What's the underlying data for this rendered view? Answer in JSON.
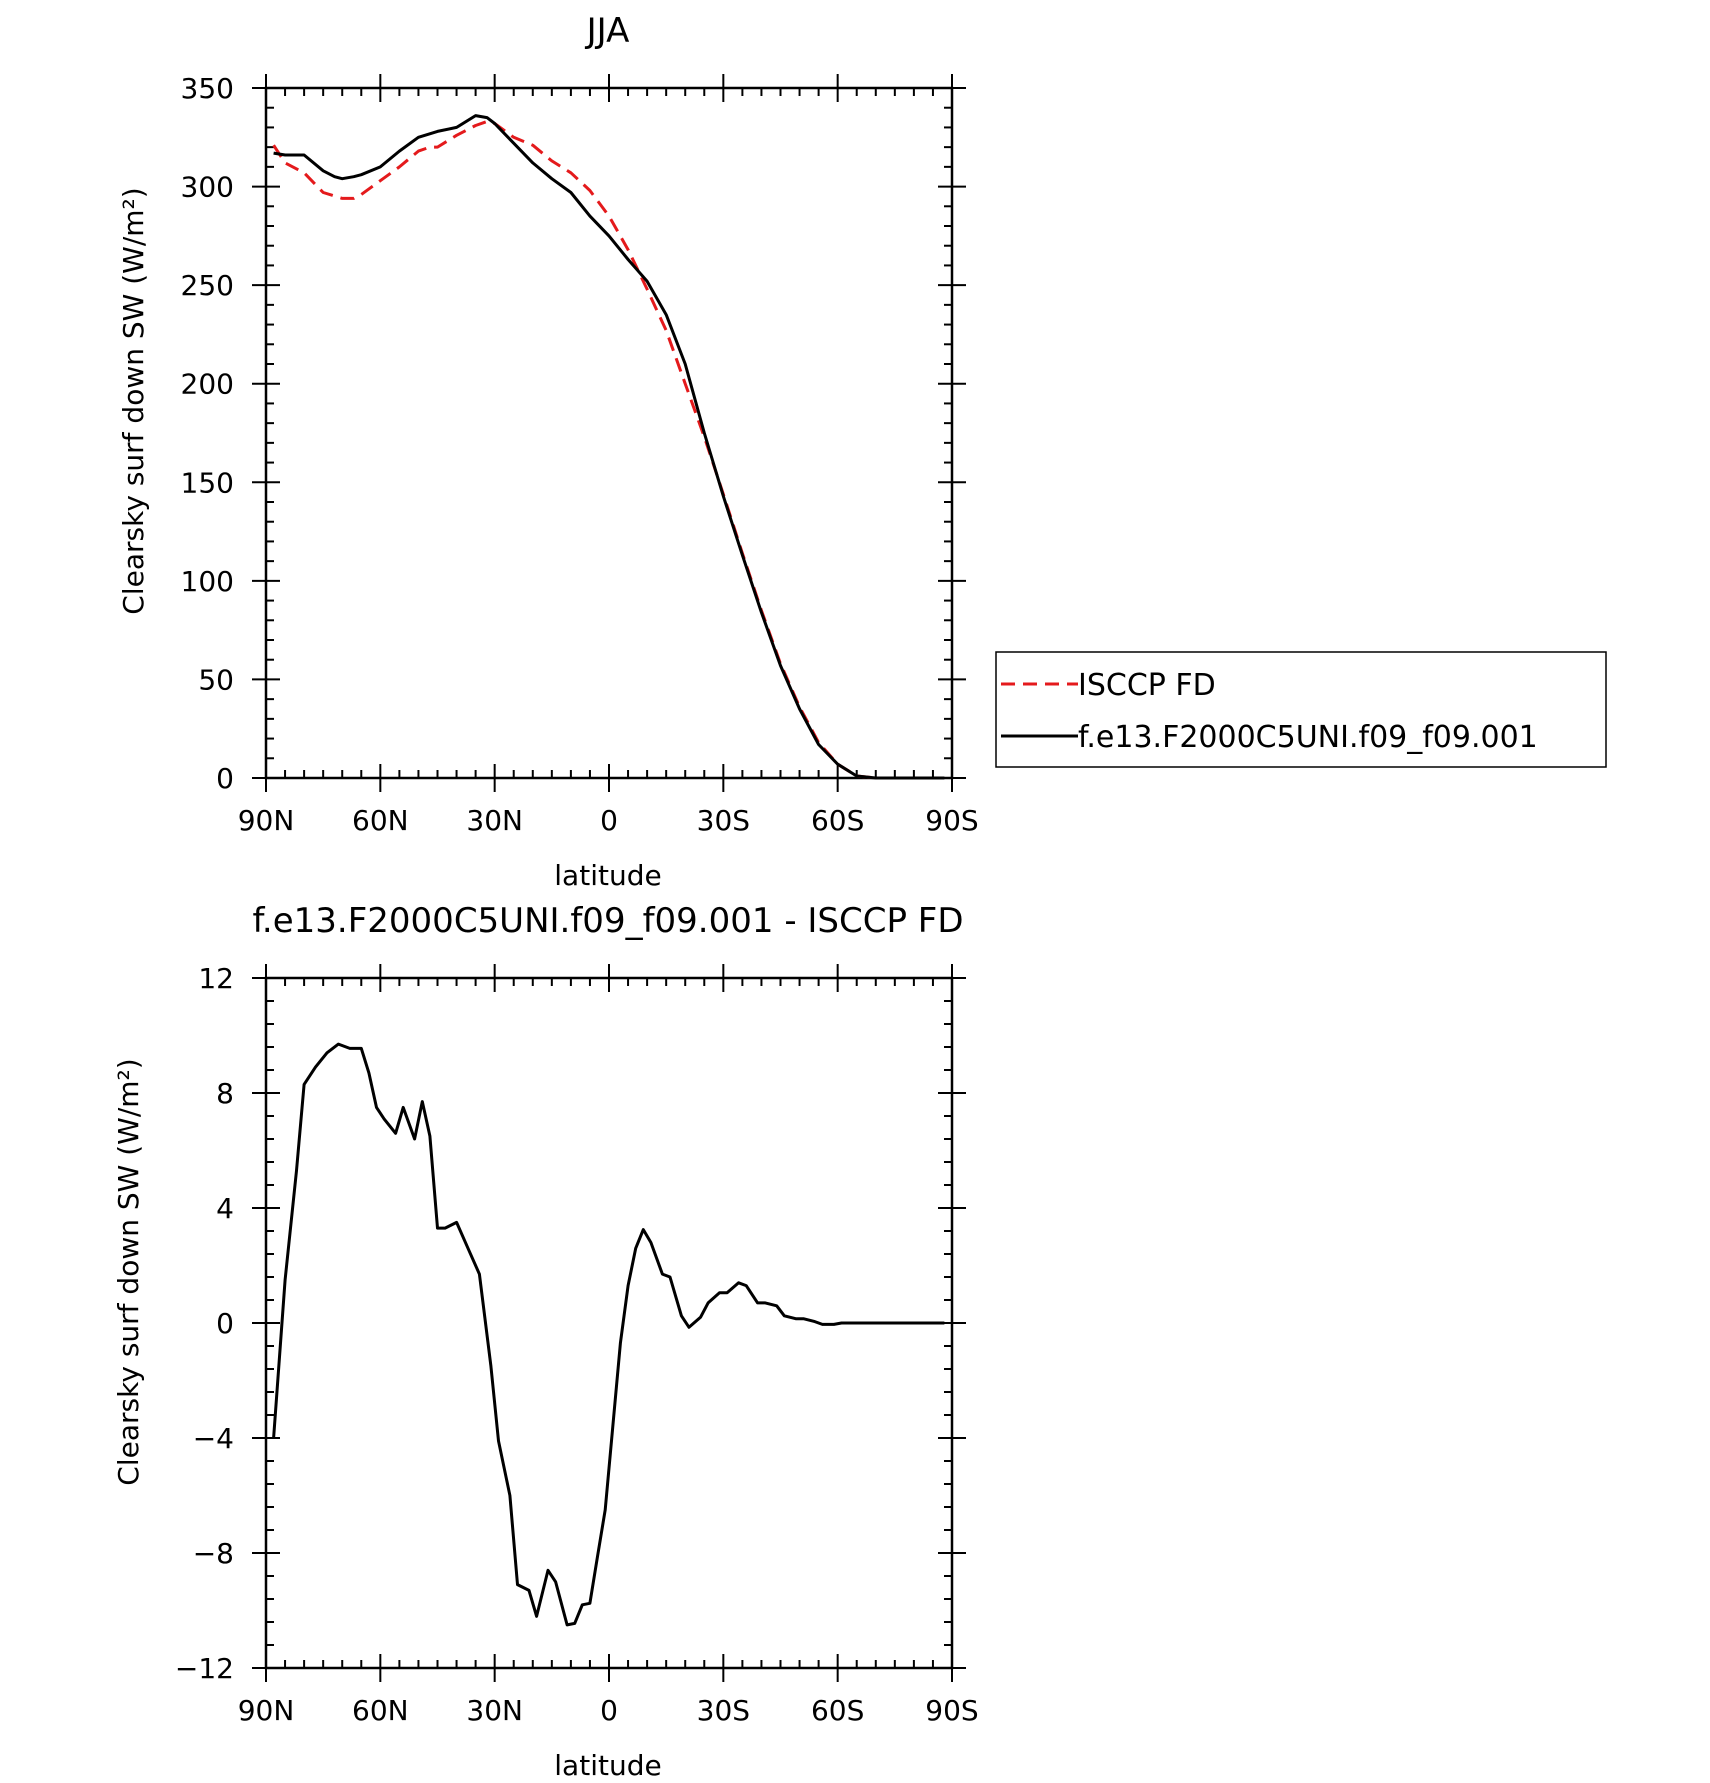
{
  "chart_data": [
    {
      "type": "line",
      "title": "JJA",
      "xlabel": "latitude",
      "ylabel": "Clearsky surf down SW (W/m²)",
      "xlim": [
        90,
        -90
      ],
      "ylim": [
        0,
        350
      ],
      "xticks": [
        90,
        60,
        30,
        0,
        -30,
        -60,
        -90
      ],
      "xtick_labels": [
        "90N",
        "60N",
        "30N",
        "0",
        "30S",
        "60S",
        "90S"
      ],
      "yticks": [
        0,
        50,
        100,
        150,
        200,
        250,
        300,
        350
      ],
      "ytick_labels": [
        "0",
        "50",
        "100",
        "150",
        "200",
        "250",
        "300",
        "350"
      ],
      "legend_position": "right",
      "series": [
        {
          "name": "ISCCP FD",
          "color": "#e41a1c",
          "style": "dashed",
          "x": [
            88,
            85,
            80,
            75,
            70,
            67,
            65,
            60,
            55,
            50,
            47,
            45,
            40,
            35,
            32,
            30,
            25,
            20,
            15,
            10,
            5,
            0,
            -5,
            -10,
            -15,
            -20,
            -25,
            -30,
            -35,
            -40,
            -45,
            -50,
            -55,
            -60,
            -65,
            -70,
            -75,
            -80,
            -85,
            -88
          ],
          "y": [
            321,
            312,
            307,
            297,
            294,
            294,
            296,
            303,
            310,
            318,
            320,
            320,
            326,
            331,
            333,
            332,
            325,
            321,
            313,
            307,
            298,
            285,
            268,
            248,
            227,
            200,
            173,
            144,
            114,
            85,
            58,
            36,
            18,
            7,
            1,
            0,
            0,
            0,
            0,
            0
          ]
        },
        {
          "name": "f.e13.F2000C5UNI.f09_f09.001",
          "color": "#000000",
          "style": "solid",
          "x": [
            88,
            85,
            80,
            75,
            72,
            70,
            67,
            65,
            60,
            55,
            50,
            45,
            40,
            35,
            32,
            30,
            25,
            20,
            15,
            10,
            5,
            0,
            -5,
            -10,
            -15,
            -20,
            -25,
            -30,
            -35,
            -40,
            -45,
            -50,
            -55,
            -60,
            -65,
            -70,
            -75,
            -80,
            -85,
            -88
          ],
          "y": [
            317,
            316,
            316,
            308,
            305,
            304,
            305,
            306,
            310,
            318,
            325,
            328,
            330,
            336,
            335,
            332,
            322,
            312,
            304,
            297,
            285,
            275,
            263,
            252,
            235,
            210,
            175,
            143,
            113,
            84,
            57,
            35,
            17,
            7,
            1,
            0,
            0,
            0,
            0,
            0
          ]
        }
      ]
    },
    {
      "type": "line",
      "title": "f.e13.F2000C5UNI.f09_f09.001 - ISCCP FD",
      "xlabel": "latitude",
      "ylabel": "Clearsky surf down SW (W/m²)",
      "xlim": [
        90,
        -90
      ],
      "ylim": [
        -12,
        12
      ],
      "xticks": [
        90,
        60,
        30,
        0,
        -30,
        -60,
        -90
      ],
      "xtick_labels": [
        "90N",
        "60N",
        "30N",
        "0",
        "30S",
        "60S",
        "90S"
      ],
      "yticks": [
        -12,
        -8,
        -4,
        0,
        4,
        8,
        12
      ],
      "ytick_labels": [
        "−12",
        "−8",
        "−4",
        "0",
        "4",
        "8",
        "12"
      ],
      "series": [
        {
          "color": "#000000",
          "style": "solid",
          "x": [
            88,
            85,
            82,
            80,
            77,
            74,
            71,
            68,
            65,
            63,
            61,
            59,
            56,
            54,
            51,
            49,
            47,
            45,
            43,
            40,
            37,
            34,
            31,
            29,
            26,
            24,
            21,
            19,
            16,
            14,
            11,
            9,
            7,
            5,
            3,
            1,
            -1,
            -3,
            -5,
            -7,
            -9,
            -11,
            -14,
            -16,
            -19,
            -21,
            -24,
            -26,
            -29,
            -31,
            -34,
            -36,
            -39,
            -41,
            -44,
            -46,
            -49,
            -51,
            -54,
            -56,
            -59,
            -61,
            -64,
            -66,
            -69,
            -71,
            -74,
            -76,
            -79,
            -81,
            -84,
            -86,
            -88
          ],
          "y": [
            -4.0,
            1.5,
            5.3,
            8.3,
            8.9,
            9.4,
            9.7,
            9.55,
            9.55,
            8.7,
            7.5,
            7.1,
            6.6,
            7.5,
            6.4,
            7.7,
            6.5,
            3.3,
            3.3,
            3.5,
            2.6,
            1.7,
            -1.5,
            -4.1,
            -6.0,
            -9.1,
            -9.3,
            -10.2,
            -8.6,
            -9.0,
            -10.5,
            -10.45,
            -9.8,
            -9.75,
            -8.1,
            -6.5,
            -3.6,
            -0.7,
            1.3,
            2.6,
            3.25,
            2.8,
            1.7,
            1.6,
            0.25,
            -0.15,
            0.2,
            0.7,
            1.05,
            1.05,
            1.4,
            1.3,
            0.7,
            0.7,
            0.6,
            0.25,
            0.15,
            0.15,
            0.05,
            -0.05,
            -0.05,
            0.0,
            0.0,
            0.0,
            0.0,
            0.0,
            0.0,
            0.0,
            0.0,
            0.0,
            0.0,
            0.0,
            0.0
          ]
        }
      ]
    }
  ]
}
